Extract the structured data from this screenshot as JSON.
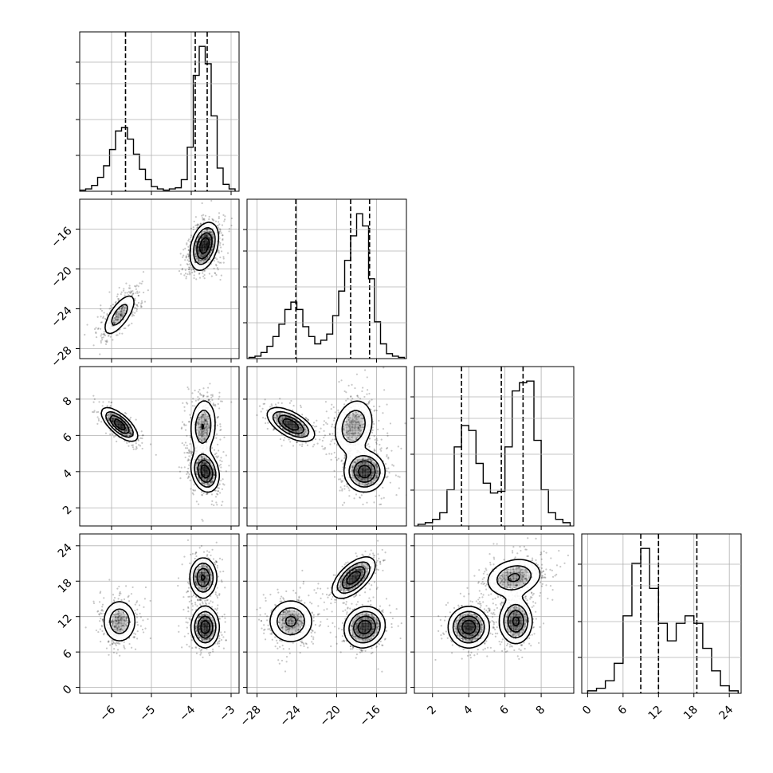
{
  "chart_data": {
    "type": "corner",
    "description_free": true,
    "parameters": 4,
    "colors": {
      "line": "#000000",
      "grid": "#b0b0b0",
      "density": "#000000"
    },
    "grid": true,
    "ranges": [
      [
        -6.8,
        -2.8
      ],
      [
        -29,
        -13
      ],
      [
        1,
        9.8
      ],
      [
        -1,
        26
      ]
    ],
    "ticks": [
      {
        "values": [
          -6,
          -5,
          -4,
          -3
        ],
        "labels": [
          "−6",
          "−5",
          "−4",
          "−3"
        ]
      },
      {
        "values": [
          -28,
          -24,
          -20,
          -16
        ],
        "labels": [
          "−28",
          "−24",
          "−20",
          "−16"
        ]
      },
      {
        "values": [
          2,
          4,
          6,
          8
        ],
        "labels": [
          "2",
          "4",
          "6",
          "8"
        ]
      },
      {
        "values": [
          0,
          6,
          12,
          18,
          24
        ],
        "labels": [
          "0",
          "6",
          "12",
          "18",
          "24"
        ]
      }
    ],
    "quantiles": [
      [
        -5.65,
        -3.9,
        -3.6
      ],
      [
        -24.1,
        -18.6,
        -16.7
      ],
      [
        3.6,
        5.8,
        7.0
      ],
      [
        9.0,
        12.0,
        18.5
      ]
    ],
    "histograms": [
      {
        "bin_edges": [
          -6.8,
          -6.65,
          -6.5,
          -6.35,
          -6.2,
          -6.05,
          -5.9,
          -5.75,
          -5.6,
          -5.45,
          -5.3,
          -5.15,
          -5.0,
          -4.85,
          -4.7,
          -4.55,
          -4.4,
          -4.25,
          -4.1,
          -3.95,
          -3.8,
          -3.65,
          -3.5,
          -3.35,
          -3.2,
          -3.05,
          -2.9
        ],
        "counts": [
          1,
          2,
          5,
          12,
          22,
          36,
          52,
          55,
          45,
          32,
          19,
          10,
          4,
          2,
          1,
          2,
          3,
          10,
          38,
          100,
          125,
          110,
          65,
          20,
          6,
          2
        ]
      },
      {
        "bin_edges": [
          -28.8,
          -28.2,
          -27.6,
          -27.0,
          -26.4,
          -25.8,
          -25.2,
          -24.6,
          -24.0,
          -23.4,
          -22.8,
          -22.2,
          -21.6,
          -21.0,
          -20.4,
          -19.8,
          -19.2,
          -18.6,
          -18.0,
          -17.4,
          -16.8,
          -16.2,
          -15.6,
          -15.0,
          -14.4,
          -13.8,
          -13.2
        ],
        "counts": [
          1,
          2,
          5,
          10,
          18,
          28,
          40,
          46,
          40,
          26,
          18,
          12,
          15,
          20,
          35,
          55,
          80,
          100,
          118,
          108,
          65,
          30,
          12,
          4,
          2,
          1
        ]
      },
      {
        "bin_edges": [
          1.2,
          1.6,
          2.0,
          2.4,
          2.8,
          3.2,
          3.6,
          4.0,
          4.4,
          4.8,
          5.2,
          5.6,
          6.0,
          6.4,
          6.8,
          7.2,
          7.6,
          8.0,
          8.4,
          8.8,
          9.2,
          9.6
        ],
        "counts": [
          1,
          2,
          4,
          8,
          22,
          48,
          61,
          58,
          38,
          26,
          20,
          21,
          48,
          82,
          87,
          88,
          52,
          22,
          8,
          4,
          2
        ]
      },
      {
        "bin_edges": [
          0,
          1.5,
          3,
          4.5,
          6,
          7.5,
          9,
          10.5,
          12,
          13.5,
          15,
          16.5,
          18,
          19.5,
          21,
          22.5,
          24,
          25.5
        ],
        "counts": [
          1,
          2,
          5,
          12,
          31,
          52,
          58,
          42,
          28,
          21,
          28,
          31,
          28,
          18,
          9,
          3,
          1
        ]
      }
    ],
    "modes": [
      {
        "center": [
          -5.8,
          -24.6,
          6.6,
          11.2
        ],
        "sd": [
          0.22,
          1.15,
          0.45,
          1.9
        ],
        "corr": [
          [
            1,
            0.7,
            -0.7,
            0
          ],
          [
            0.7,
            1,
            -0.6,
            0
          ],
          [
            -0.7,
            -0.6,
            1,
            0
          ],
          [
            0,
            0,
            0,
            1
          ]
        ],
        "weight": 0.3
      },
      {
        "center": [
          -3.65,
          -17.2,
          4.0,
          10.2
        ],
        "sd": [
          0.17,
          1.0,
          0.55,
          1.7
        ],
        "corr": [
          [
            1,
            0.3,
            -0.2,
            0
          ],
          [
            0.3,
            1,
            0,
            0.1
          ],
          [
            -0.2,
            0,
            1,
            0
          ],
          [
            0,
            0.1,
            0,
            1
          ]
        ],
        "weight": 0.38
      },
      {
        "center": [
          -3.7,
          -18.3,
          6.5,
          18.6
        ],
        "sd": [
          0.17,
          1.05,
          0.8,
          1.7
        ],
        "corr": [
          [
            1,
            0.3,
            0.1,
            0
          ],
          [
            0.3,
            1,
            0.2,
            0.6
          ],
          [
            0.1,
            0.2,
            1,
            0.2
          ],
          [
            0,
            0.6,
            0.2,
            1
          ]
        ],
        "weight": 0.32
      }
    ],
    "xlabel": "",
    "ylabel": "",
    "title": ""
  }
}
